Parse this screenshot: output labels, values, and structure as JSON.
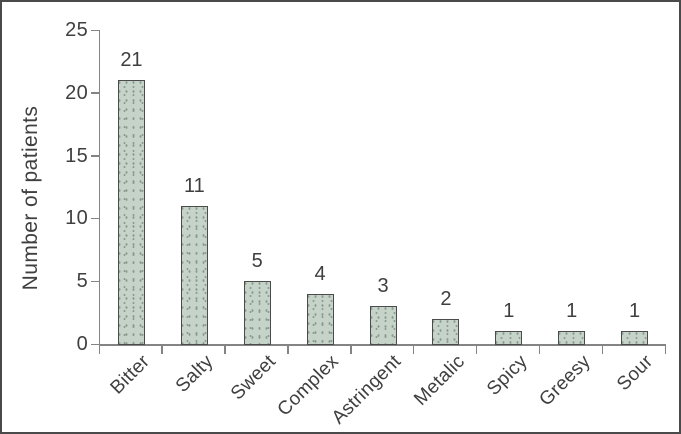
{
  "figure": {
    "background_color": "#ffffff",
    "border_color": "#4a4a4a"
  },
  "chart_data": {
    "type": "bar",
    "title": "",
    "xlabel": "",
    "ylabel": "Number of patients",
    "categories": [
      "Bitter",
      "Salty",
      "Sweet",
      "Complex",
      "Astringent",
      "Metalic",
      "Spicy",
      "Greesy",
      "Sour"
    ],
    "values": [
      21,
      11,
      5,
      4,
      3,
      2,
      1,
      1,
      1
    ],
    "bar_labels": [
      "21",
      "11",
      "5",
      "4",
      "3",
      "2",
      "1",
      "1",
      "1"
    ],
    "ylim": [
      0,
      25
    ],
    "yticks": [
      0,
      5,
      10,
      15,
      20,
      25
    ],
    "grid": false,
    "legend_position": "none",
    "colors": {
      "bar_fill": "#c6d3c9",
      "bar_dots": "#8a9c91",
      "bar_border": "#4b4b4b",
      "axis": "#848484",
      "text": "#3f3f3f"
    }
  }
}
